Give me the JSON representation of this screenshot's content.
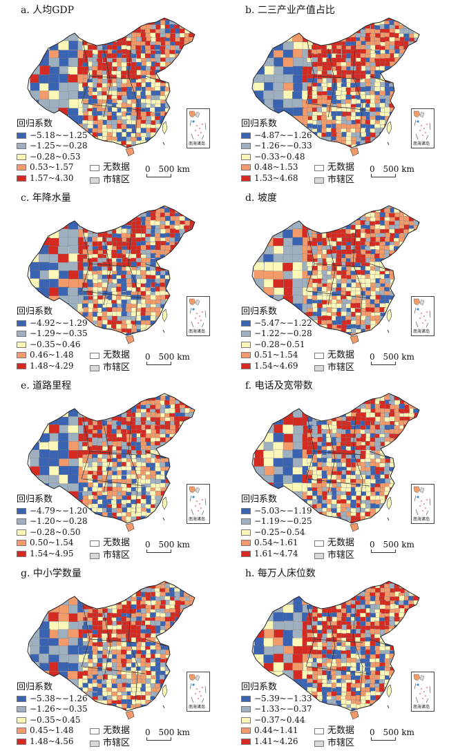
{
  "legend_title": "回归系数",
  "no_data_label": "无数据",
  "municipality_label": "市辖区",
  "scale_zero": "0",
  "scale_label": "500 km",
  "inset_label": "南海诸岛",
  "colors": {
    "c1": "#3a63b2",
    "c2": "#9eb0c0",
    "c3": "#fbf7b8",
    "c4": "#f29a6a",
    "c5": "#d42a22",
    "no_data": "#ffffff",
    "municipality": "#d9d9d9"
  },
  "panels": [
    {
      "title": "a. 人均GDP",
      "classes": [
        "−5.18~−1.25",
        "−1.25~−0.28",
        "−0.28~0.53",
        "0.53~1.57",
        "1.57~4.30"
      ]
    },
    {
      "title": "b. 二三产业产值占比",
      "classes": [
        "−4.87~−1.26",
        "−1.26~−0.33",
        "−0.33~0.48",
        "0.48~1.53",
        "1.53~4.68"
      ]
    },
    {
      "title": "c. 年降水量",
      "classes": [
        "−4.92~−1.29",
        "−1.29~−0.35",
        "−0.35~0.46",
        "0.46~1.48",
        "1.48~4.29"
      ]
    },
    {
      "title": "d. 坡度",
      "classes": [
        "−5.47~−1.22",
        "−1.22~−0.28",
        "−0.28~0.51",
        "0.51~1.54",
        "1.54~4.69"
      ]
    },
    {
      "title": "e. 道路里程",
      "classes": [
        "−4.79~−1.20",
        "−1.20~−0.28",
        "−0.28~0.50",
        "0.50~1.54",
        "1.54~4.95"
      ]
    },
    {
      "title": "f. 电话及宽带数",
      "classes": [
        "−5.03~−1.19",
        "−1.19~−0.25",
        "−0.25~0.54",
        "0.54~1.61",
        "1.61~4.74"
      ]
    },
    {
      "title": "g. 中小学数量",
      "classes": [
        "−5.38~−1.26",
        "−1.26~−0.35",
        "−0.35~0.45",
        "0.45~1.48",
        "1.48~4.56"
      ]
    },
    {
      "title": "h. 每万人床位数",
      "classes": [
        "−5.39~−1.33",
        "−1.33~−0.37",
        "−0.37~0.44",
        "0.44~1.41",
        "1.41~4.26"
      ]
    }
  ]
}
